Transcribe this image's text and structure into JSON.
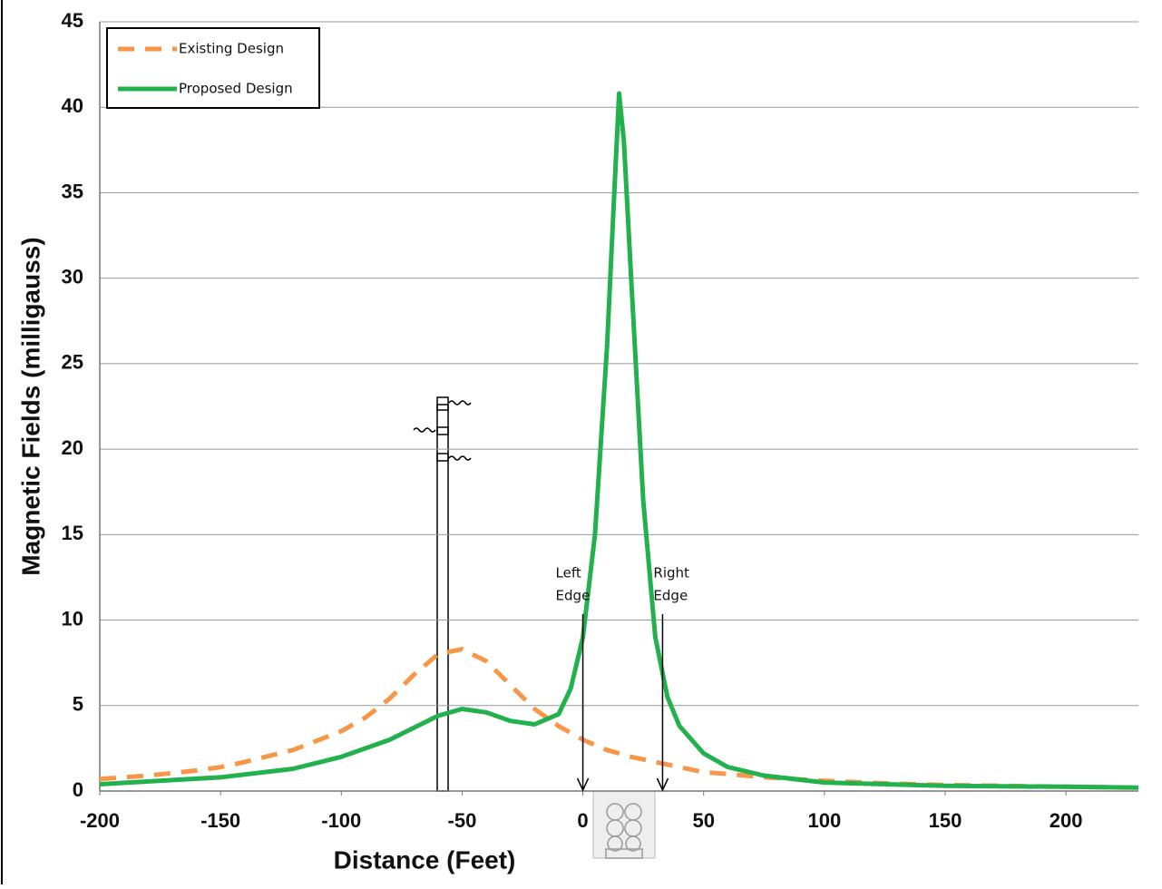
{
  "chart_data": {
    "type": "line",
    "x_label": "Distance (Feet)",
    "y_label": "Magnetic Fields (milligauss)",
    "xlim": [
      -200,
      230
    ],
    "ylim": [
      0,
      45
    ],
    "xticks": [
      -200,
      -150,
      -100,
      -50,
      0,
      50,
      100,
      150,
      200
    ],
    "yticks": [
      0,
      5,
      10,
      15,
      20,
      25,
      30,
      35,
      40,
      45
    ],
    "grid": true,
    "legend": "upper left",
    "series": [
      {
        "name": "Existing Design",
        "color": "#f79646",
        "style": "dashed",
        "x": [
          -200,
          -180,
          -160,
          -150,
          -140,
          -120,
          -100,
          -90,
          -80,
          -70,
          -60,
          -50,
          -40,
          -30,
          -20,
          -10,
          0,
          10,
          20,
          30,
          40,
          50,
          60,
          75,
          100,
          125,
          150,
          175,
          200,
          230
        ],
        "values": [
          0.7,
          0.9,
          1.2,
          1.4,
          1.7,
          2.4,
          3.5,
          4.3,
          5.4,
          6.8,
          8.0,
          8.3,
          7.6,
          6.2,
          4.8,
          3.8,
          3.0,
          2.4,
          2.0,
          1.7,
          1.4,
          1.1,
          1.0,
          0.8,
          0.6,
          0.45,
          0.35,
          0.3,
          0.25,
          0.2
        ]
      },
      {
        "name": "Proposed Design",
        "color": "#22b14c",
        "style": "solid",
        "x": [
          -200,
          -150,
          -120,
          -100,
          -80,
          -60,
          -50,
          -40,
          -30,
          -20,
          -10,
          -5,
          0,
          5,
          10,
          13,
          15,
          17,
          20,
          25,
          30,
          35,
          40,
          50,
          60,
          75,
          100,
          150,
          200,
          230
        ],
        "values": [
          0.4,
          0.8,
          1.3,
          2.0,
          3.0,
          4.4,
          4.8,
          4.6,
          4.1,
          3.9,
          4.5,
          6.0,
          9.0,
          15.0,
          26.0,
          35.0,
          40.8,
          38.0,
          30.0,
          17.0,
          9.0,
          5.5,
          3.8,
          2.2,
          1.4,
          0.9,
          0.5,
          0.3,
          0.25,
          0.2
        ]
      }
    ],
    "annotations": [
      {
        "lines": [
          "Left",
          "Edge"
        ],
        "x": 0
      },
      {
        "lines": [
          "Right",
          "Edge"
        ],
        "x": 33
      }
    ]
  }
}
